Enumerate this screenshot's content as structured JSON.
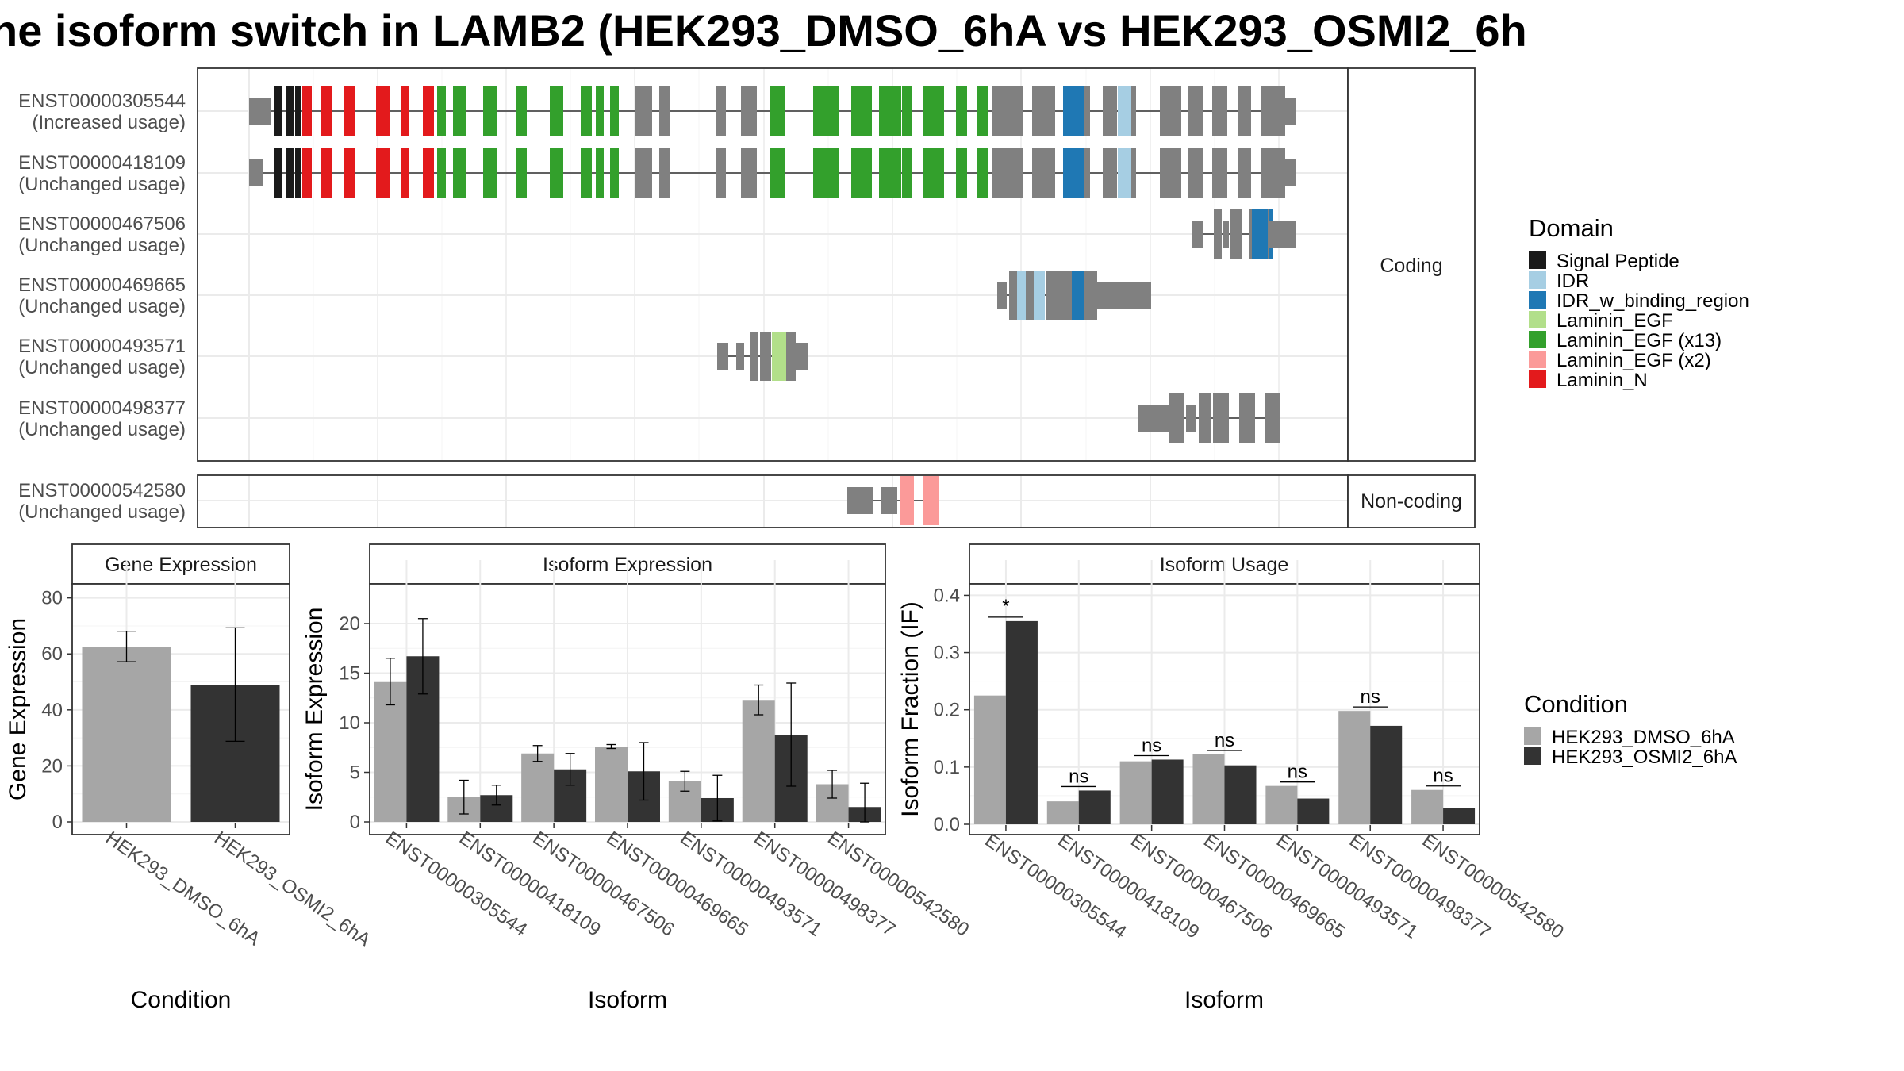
{
  "title": "ne isoform switch in LAMB2 (HEK293_DMSO_6hA vs HEK293_OSMI2_6h",
  "colors": {
    "exon": "#808080",
    "dmso": "#a6a6a6",
    "osmi2": "#333333",
    "grid": "#ebebeb",
    "panel_border": "#333333",
    "strip_bg": "#ffffff"
  },
  "domain_legend": {
    "title": "Domain",
    "items": [
      {
        "label": "Signal Peptide",
        "color": "#1a1a1a"
      },
      {
        "label": "IDR",
        "color": "#a6cee3"
      },
      {
        "label": "IDR_w_binding_region",
        "color": "#1f78b4"
      },
      {
        "label": "Laminin_EGF",
        "color": "#b2df8a"
      },
      {
        "label": "Laminin_EGF (x13)",
        "color": "#33a02c"
      },
      {
        "label": "Laminin_EGF (x2)",
        "color": "#fb9a99"
      },
      {
        "label": "Laminin_N",
        "color": "#e31a1c"
      }
    ]
  },
  "transcript_panels": {
    "coding_label": "Coding",
    "noncoding_label": "Non-coding",
    "coding": [
      {
        "id": "ENST00000305544",
        "status": "(Increased usage)"
      },
      {
        "id": "ENST00000418109",
        "status": "(Unchanged usage)"
      },
      {
        "id": "ENST00000467506",
        "status": "(Unchanged usage)"
      },
      {
        "id": "ENST00000469665",
        "status": "(Unchanged usage)"
      },
      {
        "id": "ENST00000493571",
        "status": "(Unchanged usage)"
      },
      {
        "id": "ENST00000498377",
        "status": "(Unchanged usage)"
      }
    ],
    "noncoding": [
      {
        "id": "ENST00000542580",
        "status": "(Unchanged usage)"
      }
    ]
  },
  "condition_legend": {
    "title": "Condition",
    "items": [
      {
        "label": "HEK293_DMSO_6hA",
        "color": "#a6a6a6"
      },
      {
        "label": "HEK293_OSMI2_6hA",
        "color": "#333333"
      }
    ]
  },
  "chart_data": [
    {
      "type": "bar",
      "title": "Gene Expression",
      "xlabel": "Condition",
      "ylabel": "Gene Expression",
      "ylim": [
        0,
        85
      ],
      "yticks": [
        0,
        20,
        40,
        60,
        80
      ],
      "categories": [
        "HEK293_DMSO_6hA",
        "HEK293_OSMI2_6hA"
      ],
      "values": [
        62.5,
        48.8
      ],
      "errors": [
        [
          57.2,
          68.1
        ],
        [
          28.8,
          69.3
        ]
      ],
      "colors": [
        "#a6a6a6",
        "#333333"
      ]
    },
    {
      "type": "bar",
      "title": "Isoform Expression",
      "xlabel": "Isoform",
      "ylabel": "Isoform Expression",
      "ylim": [
        0,
        24
      ],
      "yticks": [
        0,
        5,
        10,
        15,
        20
      ],
      "categories": [
        "ENST00000305544",
        "ENST00000418109",
        "ENST00000467506",
        "ENST00000469665",
        "ENST00000493571",
        "ENST00000498377",
        "ENST00000542580"
      ],
      "series": [
        {
          "name": "HEK293_DMSO_6hA",
          "values": [
            14.1,
            2.5,
            6.9,
            7.6,
            4.1,
            12.3,
            3.8
          ],
          "errors": [
            [
              11.8,
              16.5
            ],
            [
              0.8,
              4.2
            ],
            [
              6.1,
              7.7
            ],
            [
              7.4,
              7.8
            ],
            [
              3.1,
              5.1
            ],
            [
              10.8,
              13.8
            ],
            [
              2.4,
              5.2
            ]
          ]
        },
        {
          "name": "HEK293_OSMI2_6hA",
          "values": [
            16.7,
            2.7,
            5.3,
            5.1,
            2.4,
            8.8,
            1.5
          ],
          "errors": [
            [
              12.9,
              20.5
            ],
            [
              1.7,
              3.7
            ],
            [
              3.7,
              6.9
            ],
            [
              2.2,
              8.0
            ],
            [
              0.1,
              4.7
            ],
            [
              3.6,
              14.0
            ],
            [
              0.0,
              3.9
            ]
          ]
        }
      ]
    },
    {
      "type": "bar",
      "title": "Isoform Usage",
      "xlabel": "Isoform",
      "ylabel": "Isoform Fraction (IF)",
      "ylim": [
        0,
        0.42
      ],
      "yticks": [
        "0.0",
        "0.1",
        "0.2",
        "0.3",
        "0.4"
      ],
      "categories": [
        "ENST00000305544",
        "ENST00000418109",
        "ENST00000467506",
        "ENST00000469665",
        "ENST00000493571",
        "ENST00000498377",
        "ENST00000542580"
      ],
      "series": [
        {
          "name": "HEK293_DMSO_6hA",
          "values": [
            0.225,
            0.04,
            0.11,
            0.122,
            0.067,
            0.198,
            0.06
          ]
        },
        {
          "name": "HEK293_OSMI2_6hA",
          "values": [
            0.355,
            0.059,
            0.113,
            0.103,
            0.045,
            0.172,
            0.029
          ]
        }
      ],
      "annotations": [
        "*",
        "ns",
        "ns",
        "ns",
        "ns",
        "ns",
        "ns"
      ]
    }
  ]
}
